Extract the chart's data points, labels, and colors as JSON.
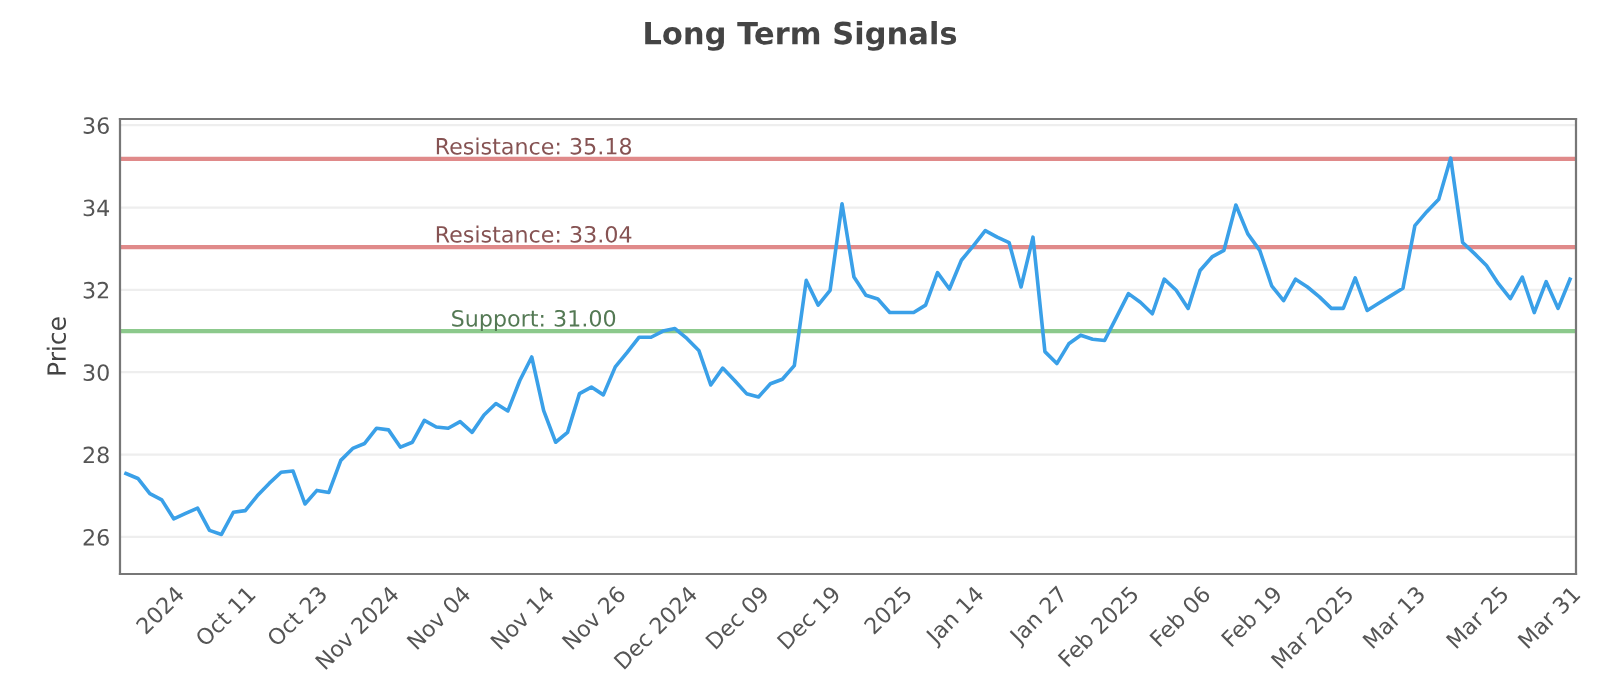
{
  "chart_data": {
    "type": "line",
    "title": "Long Term Signals",
    "ylabel": "Price",
    "categories": [
      null,
      null,
      null,
      null,
      "2024",
      null,
      null,
      null,
      null,
      null,
      "Oct 11",
      null,
      null,
      null,
      null,
      null,
      "Oct 23",
      null,
      null,
      null,
      null,
      null,
      "Nov 2024",
      null,
      null,
      null,
      null,
      null,
      "Nov 04",
      null,
      null,
      null,
      null,
      null,
      null,
      "Nov 14",
      null,
      null,
      null,
      null,
      null,
      "Nov 26",
      null,
      null,
      null,
      null,
      null,
      "Dec 2024",
      null,
      null,
      null,
      null,
      null,
      "Dec 09",
      null,
      null,
      null,
      null,
      null,
      "Dec 19",
      null,
      null,
      null,
      null,
      null,
      "2025",
      null,
      null,
      null,
      null,
      null,
      "Jan 14",
      null,
      null,
      null,
      null,
      null,
      null,
      "Jan 27",
      null,
      null,
      null,
      null,
      null,
      "Feb 2025",
      null,
      null,
      null,
      null,
      null,
      "Feb 06",
      null,
      null,
      null,
      null,
      null,
      "Feb 19",
      null,
      null,
      null,
      null,
      null,
      "Mar 2025",
      null,
      null,
      null,
      null,
      null,
      "Mar 13",
      null,
      null,
      null,
      null,
      null,
      null,
      "Mar 25",
      null,
      null,
      null,
      null,
      null,
      "Mar 31"
    ],
    "series": [
      {
        "color": "#3aa0e8",
        "values": [
          27.54,
          27.42,
          27.05,
          26.9,
          26.44,
          26.57,
          26.7,
          26.16,
          26.06,
          26.6,
          26.64,
          27.0,
          27.3,
          27.57,
          27.6,
          26.8,
          27.13,
          27.08,
          27.86,
          28.15,
          28.27,
          28.64,
          28.6,
          28.18,
          28.3,
          28.83,
          28.67,
          28.64,
          28.8,
          28.54,
          28.96,
          29.24,
          29.06,
          29.8,
          30.37,
          29.07,
          28.3,
          28.54,
          29.48,
          29.64,
          29.45,
          30.13,
          30.48,
          30.85,
          30.85,
          31.0,
          31.06,
          30.82,
          30.53,
          29.69,
          30.1,
          29.8,
          29.48,
          29.4,
          29.72,
          29.83,
          30.16,
          32.23,
          31.63,
          31.99,
          34.09,
          32.31,
          31.87,
          31.78,
          31.45,
          31.45,
          31.45,
          31.63,
          32.42,
          32.02,
          32.72,
          33.07,
          33.44,
          33.28,
          33.15,
          32.07,
          33.28,
          30.5,
          30.21,
          30.69,
          30.9,
          30.8,
          30.77,
          31.34,
          31.91,
          31.7,
          31.42,
          32.26,
          31.99,
          31.55,
          32.47,
          32.8,
          32.96,
          34.06,
          33.36,
          32.96,
          32.1,
          31.74,
          32.26,
          32.07,
          31.83,
          31.55,
          31.55,
          32.29,
          31.5,
          31.68,
          31.86,
          32.04,
          33.56,
          33.9,
          34.2,
          35.2,
          33.15,
          32.88,
          32.59,
          32.15,
          31.79,
          32.31,
          31.45,
          32.2,
          31.55,
          32.26
        ]
      }
    ],
    "ylim": [
      25.1,
      36.15
    ],
    "yticks": [
      26,
      28,
      30,
      32,
      34,
      36
    ],
    "grid": "y",
    "marker": "none",
    "line_style": "solid",
    "ref_lines": [
      {
        "axis": "y",
        "value": 35.18,
        "label": "Resistance: 35.18",
        "color": "#e08a8a"
      },
      {
        "axis": "y",
        "value": 33.04,
        "label": "Resistance: 33.04",
        "color": "#e08a8a"
      },
      {
        "axis": "y",
        "value": 31.0,
        "label": "Support: 31.00",
        "color": "#8cc98c"
      }
    ]
  }
}
